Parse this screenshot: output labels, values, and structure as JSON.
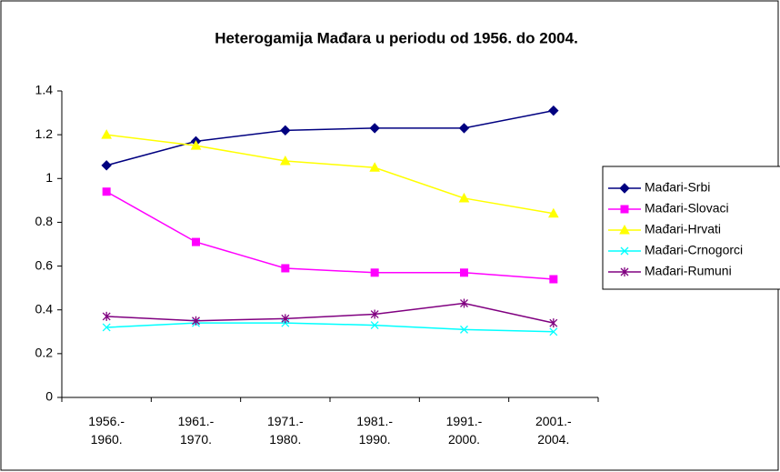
{
  "chart_data": {
    "type": "line",
    "title": "Heterogamija Mađara u periodu od 1956. do 2004.",
    "categories": [
      "1956.-\n1960.",
      "1961.-\n1970.",
      "1971.-\n1980.",
      "1981.-\n1990.",
      "1991.-\n2000.",
      "2001.-\n2004."
    ],
    "series": [
      {
        "name": "Mađari-Srbi",
        "color": "#000080",
        "marker": "diamond",
        "values": [
          1.06,
          1.17,
          1.22,
          1.23,
          1.23,
          1.31
        ]
      },
      {
        "name": "Mađari-Slovaci",
        "color": "#ff00ff",
        "marker": "square",
        "values": [
          0.94,
          0.71,
          0.59,
          0.57,
          0.57,
          0.54
        ]
      },
      {
        "name": "Mađari-Hrvati",
        "color": "#ffff00",
        "marker": "triangle",
        "values": [
          1.2,
          1.15,
          1.08,
          1.05,
          0.91,
          0.84
        ]
      },
      {
        "name": "Mađari-Crnogorci",
        "color": "#00ffff",
        "marker": "x",
        "values": [
          0.32,
          0.34,
          0.34,
          0.33,
          0.31,
          0.3
        ]
      },
      {
        "name": "Mađari-Rumuni",
        "color": "#800080",
        "marker": "star",
        "values": [
          0.37,
          0.35,
          0.36,
          0.38,
          0.43,
          0.34
        ]
      }
    ],
    "ylim": [
      0,
      1.4
    ],
    "yticks": [
      0,
      0.2,
      0.4,
      0.6,
      0.8,
      1,
      1.2,
      1.4
    ],
    "grid": false,
    "legend": "right"
  }
}
